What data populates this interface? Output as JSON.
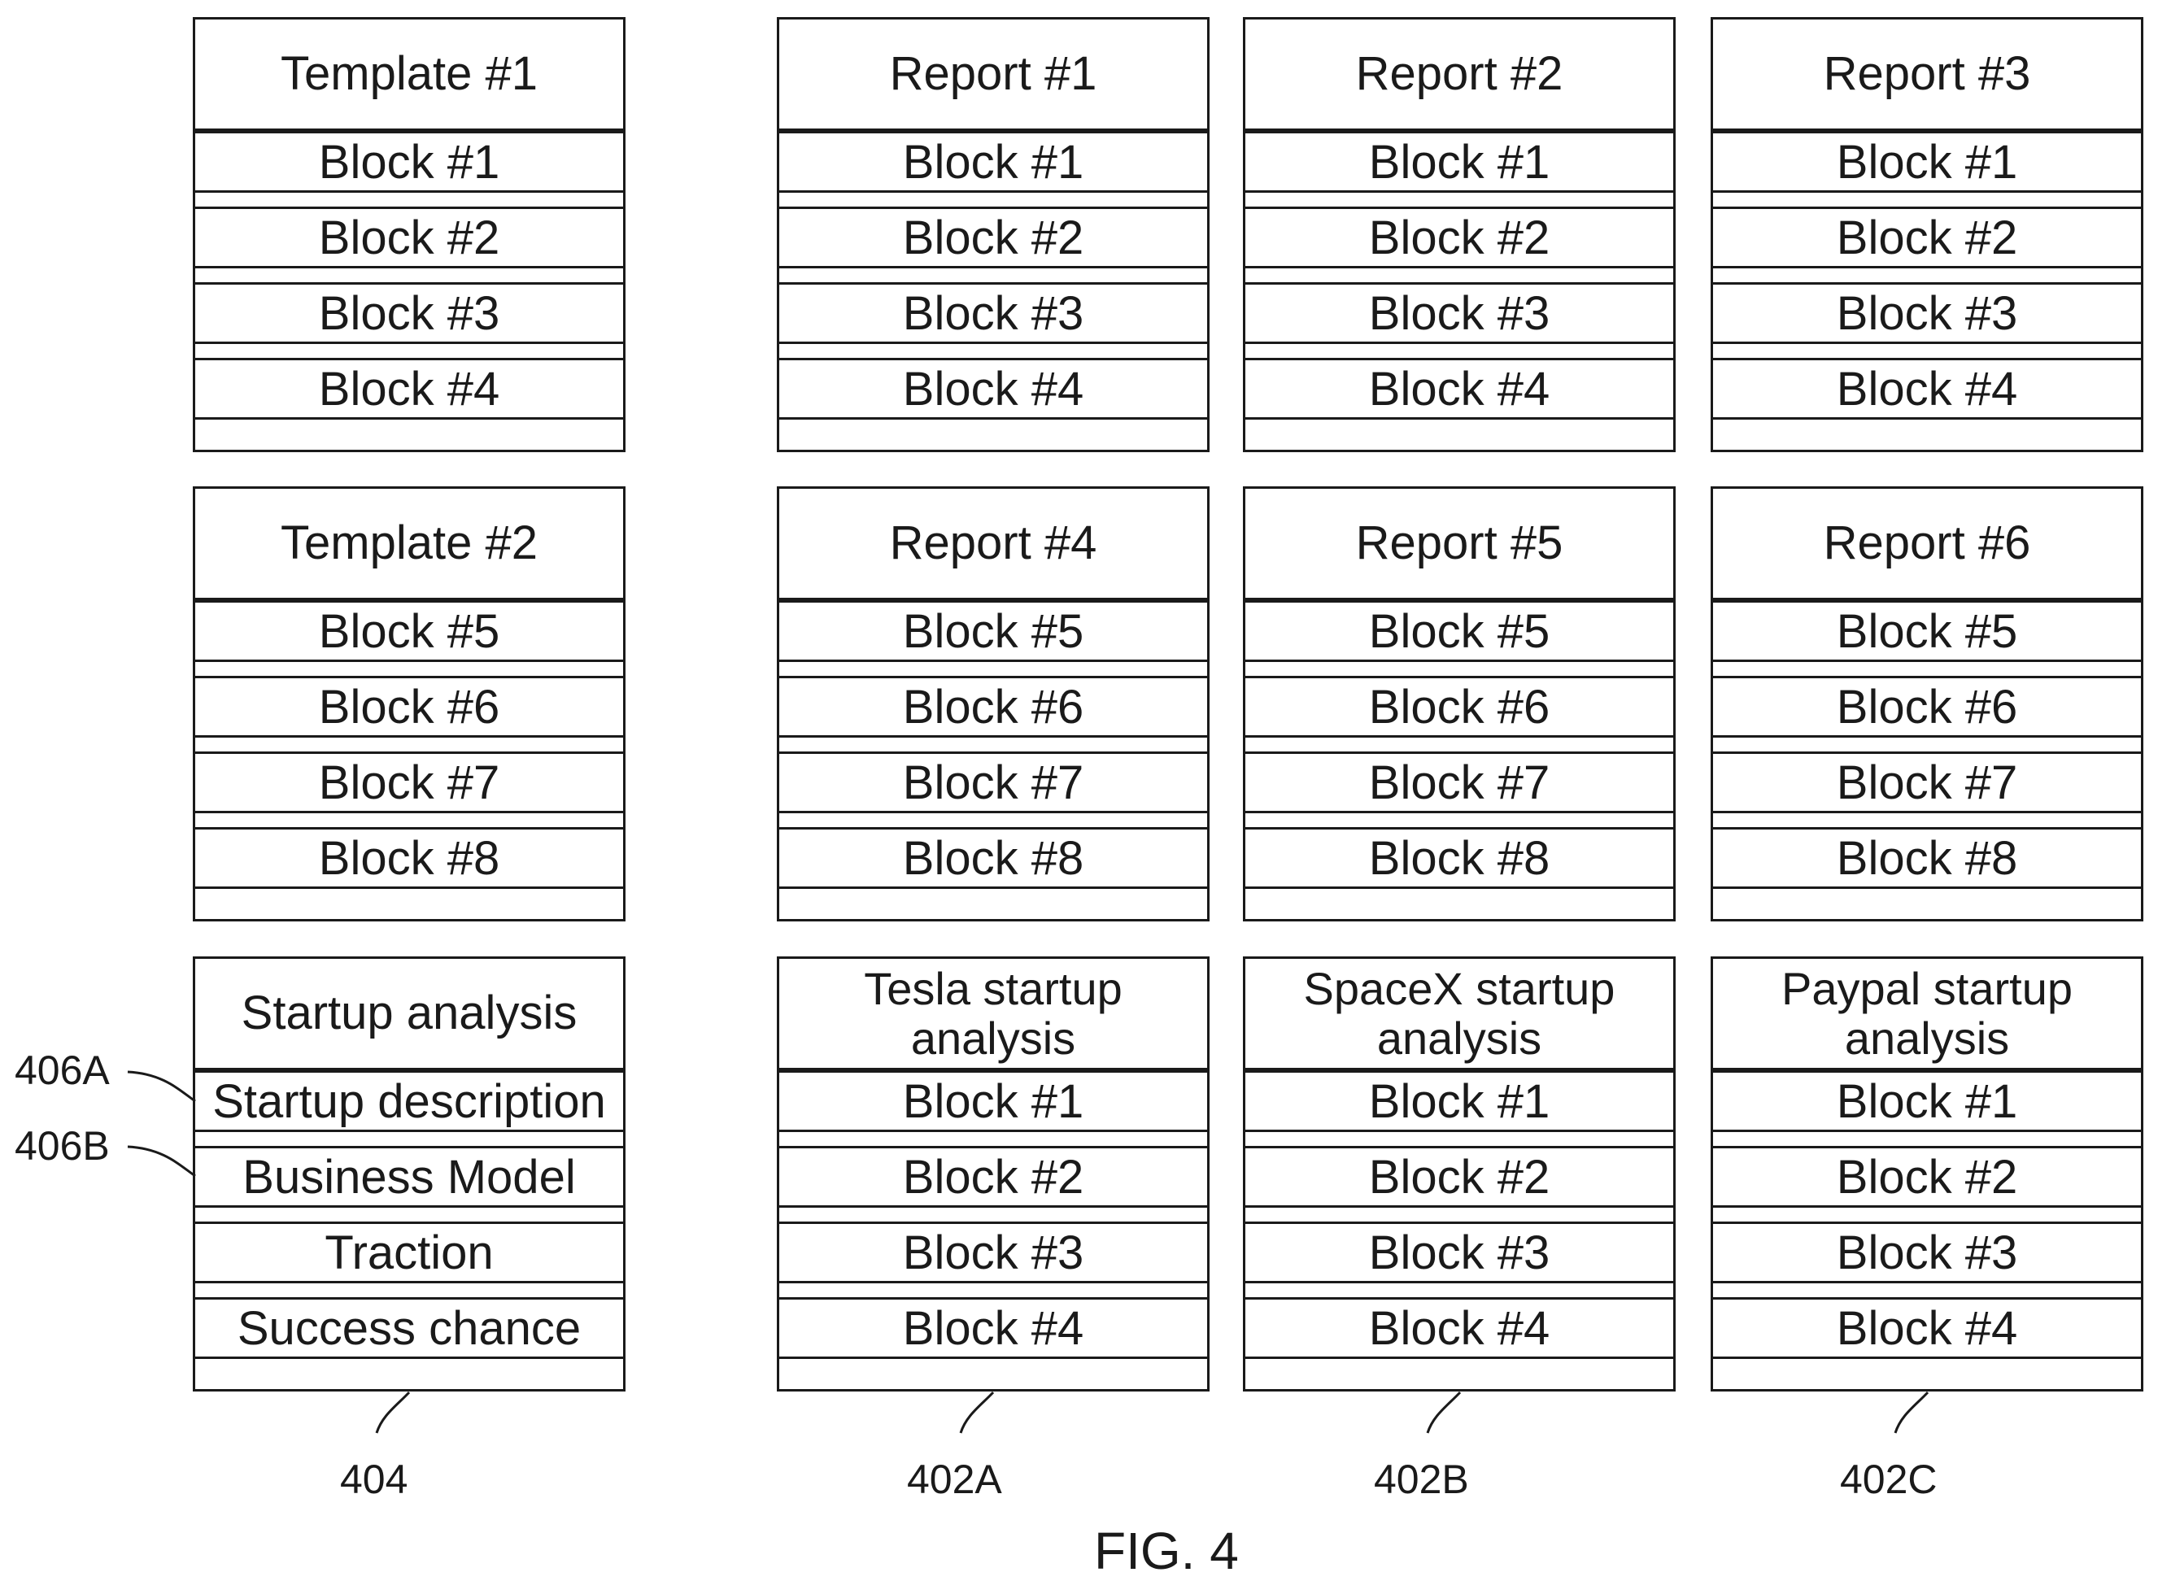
{
  "cards": [
    {
      "title": "Template #1",
      "blocks": [
        "Block #1",
        "Block #2",
        "Block #3",
        "Block #4"
      ]
    },
    {
      "title": "Report #1",
      "blocks": [
        "Block #1",
        "Block #2",
        "Block #3",
        "Block #4"
      ]
    },
    {
      "title": "Report #2",
      "blocks": [
        "Block #1",
        "Block #2",
        "Block #3",
        "Block #4"
      ]
    },
    {
      "title": "Report #3",
      "blocks": [
        "Block #1",
        "Block #2",
        "Block #3",
        "Block #4"
      ]
    },
    {
      "title": "Template #2",
      "blocks": [
        "Block #5",
        "Block #6",
        "Block #7",
        "Block #8"
      ]
    },
    {
      "title": "Report #4",
      "blocks": [
        "Block #5",
        "Block #6",
        "Block #7",
        "Block #8"
      ]
    },
    {
      "title": "Report #5",
      "blocks": [
        "Block #5",
        "Block #6",
        "Block #7",
        "Block #8"
      ]
    },
    {
      "title": "Report #6",
      "blocks": [
        "Block #5",
        "Block #6",
        "Block #7",
        "Block #8"
      ]
    },
    {
      "title": "Startup analysis",
      "blocks": [
        "Startup description",
        "Business Model",
        "Traction",
        "Success chance"
      ]
    },
    {
      "title": "Tesla startup analysis",
      "blocks": [
        "Block #1",
        "Block #2",
        "Block #3",
        "Block #4"
      ]
    },
    {
      "title": "SpaceX startup analysis",
      "blocks": [
        "Block #1",
        "Block #2",
        "Block #3",
        "Block #4"
      ]
    },
    {
      "title": "Paypal startup analysis",
      "blocks": [
        "Block #1",
        "Block #2",
        "Block #3",
        "Block #4"
      ]
    }
  ],
  "labels": {
    "template_ref": "404",
    "report_a_ref": "402A",
    "report_b_ref": "402B",
    "report_c_ref": "402C",
    "block_a_ref": "406A",
    "block_b_ref": "406B"
  },
  "figure_caption": "FIG. 4"
}
